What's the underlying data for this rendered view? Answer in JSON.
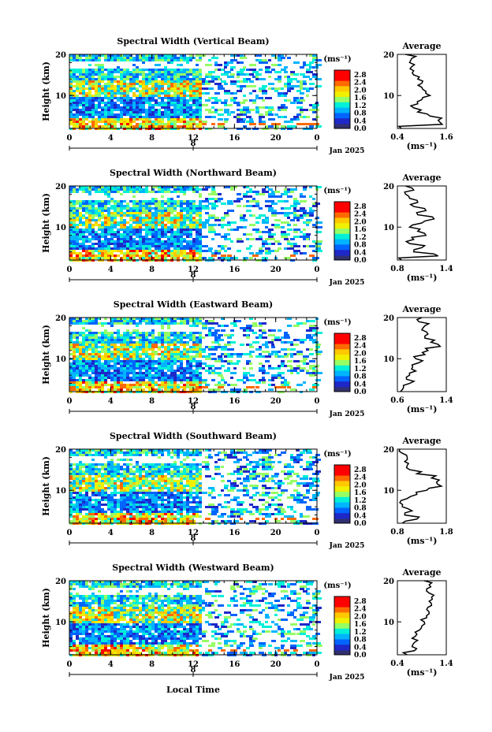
{
  "common": {
    "ylabel": "Height (km)",
    "unit_label": "(ms⁻¹)",
    "date_label": "Jan 2025",
    "day_marker": "8",
    "xlabel": "Local Time",
    "avg_title": "Average",
    "avg_xlabel": "(ms⁻¹)",
    "x_ticks": [
      "0",
      "4",
      "8",
      "12",
      "16",
      "20",
      "0"
    ],
    "y_ticks": [
      "20",
      "10"
    ],
    "colorbar_ticks": [
      "2.8",
      "2.4",
      "2.0",
      "1.6",
      "1.2",
      "0.8",
      "0.4",
      "0.0"
    ],
    "colorbar_colors": [
      "#e8e8e8",
      "#ff0000",
      "#ff6a00",
      "#ffc800",
      "#f0f000",
      "#96ff64",
      "#00f0d8",
      "#00b4ff",
      "#0064ff",
      "#1e28c8",
      "#303070"
    ]
  },
  "chart_data": [
    {
      "type": "heatmap",
      "title": "Spectral Width (Vertical Beam)",
      "xlabel": "Local Time",
      "ylabel": "Height (km)",
      "xlim": [
        0,
        24
      ],
      "ylim": [
        2,
        20
      ],
      "color_range": [
        0.0,
        3.0
      ],
      "avg_profile": {
        "title": "Average",
        "xlim": [
          0.4,
          1.6
        ],
        "x_ticks": [
          "0.4",
          "1.6"
        ],
        "height": [
          2,
          3,
          4,
          5,
          6,
          7,
          8,
          9,
          10,
          11,
          12,
          13,
          14,
          15,
          16,
          17,
          18,
          19,
          20
        ],
        "value": [
          0.5,
          1.5,
          1.4,
          1.2,
          0.9,
          0.8,
          0.9,
          1.0,
          1.2,
          1.1,
          1.0,
          1.0,
          0.9,
          0.8,
          0.8,
          0.75,
          0.7,
          0.75,
          0.6
        ]
      }
    },
    {
      "type": "heatmap",
      "title": "Spectral Width (Northward Beam)",
      "xlabel": "Local Time",
      "ylabel": "Height (km)",
      "xlim": [
        0,
        24
      ],
      "ylim": [
        2,
        20
      ],
      "color_range": [
        0.0,
        3.0
      ],
      "avg_profile": {
        "title": "Average",
        "xlim": [
          0.8,
          1.4
        ],
        "x_ticks": [
          "0.8",
          "1.4"
        ],
        "height": [
          2,
          3,
          4,
          5,
          6,
          7,
          8,
          9,
          10,
          11,
          12,
          13,
          14,
          15,
          16,
          17,
          18,
          19,
          20
        ],
        "value": [
          0.85,
          1.3,
          1.0,
          1.1,
          0.95,
          1.0,
          1.15,
          1.05,
          0.95,
          1.1,
          1.25,
          1.05,
          1.15,
          1.0,
          1.05,
          0.95,
          0.9,
          1.0,
          0.9
        ]
      }
    },
    {
      "type": "heatmap",
      "title": "Spectral Width (Eastward Beam)",
      "xlabel": "Local Time",
      "ylabel": "Height (km)",
      "xlim": [
        0,
        24
      ],
      "ylim": [
        2,
        20
      ],
      "color_range": [
        0.0,
        3.0
      ],
      "avg_profile": {
        "title": "Average",
        "xlim": [
          0.6,
          1.4
        ],
        "x_ticks": [
          "0.6",
          "1.4"
        ],
        "height": [
          2,
          3,
          4,
          5,
          6,
          7,
          8,
          9,
          10,
          11,
          12,
          13,
          14,
          15,
          16,
          17,
          18,
          19,
          20
        ],
        "value": [
          0.65,
          0.7,
          0.8,
          0.75,
          0.8,
          0.9,
          0.85,
          0.95,
          0.9,
          1.05,
          1.1,
          1.3,
          1.15,
          1.05,
          1.1,
          1.0,
          1.05,
          0.95,
          1.0
        ]
      }
    },
    {
      "type": "heatmap",
      "title": "Spectral Width (Southward Beam)",
      "xlabel": "Local Time",
      "ylabel": "Height (km)",
      "xlim": [
        0,
        24
      ],
      "ylim": [
        2,
        20
      ],
      "color_range": [
        0.0,
        3.0
      ],
      "avg_profile": {
        "title": "Average",
        "xlim": [
          0.8,
          1.8
        ],
        "x_ticks": [
          "0.8",
          "1.8"
        ],
        "height": [
          2,
          3,
          4,
          5,
          6,
          7,
          8,
          9,
          10,
          11,
          12,
          13,
          14,
          15,
          16,
          17,
          18,
          19,
          20
        ],
        "value": [
          0.9,
          1.2,
          0.95,
          1.1,
          0.9,
          0.85,
          1.0,
          1.2,
          1.4,
          1.7,
          1.6,
          1.5,
          1.2,
          1.05,
          1.0,
          0.95,
          1.0,
          0.9,
          0.85
        ]
      }
    },
    {
      "type": "heatmap",
      "title": "Spectral Width (Westward Beam)",
      "xlabel": "Local Time",
      "ylabel": "Height (km)",
      "xlim": [
        0,
        24
      ],
      "ylim": [
        2,
        20
      ],
      "color_range": [
        0.0,
        3.0
      ],
      "avg_profile": {
        "title": "Average",
        "xlim": [
          0.4,
          1.4
        ],
        "x_ticks": [
          "0.4",
          "1.4"
        ],
        "height": [
          2,
          3,
          4,
          5,
          6,
          7,
          8,
          9,
          10,
          11,
          12,
          13,
          14,
          15,
          16,
          17,
          18,
          19,
          20
        ],
        "value": [
          0.6,
          0.75,
          0.7,
          0.75,
          0.7,
          0.8,
          0.85,
          0.9,
          0.95,
          1.0,
          1.05,
          1.0,
          1.1,
          1.05,
          1.1,
          1.05,
          1.0,
          1.05,
          0.95
        ]
      }
    }
  ]
}
